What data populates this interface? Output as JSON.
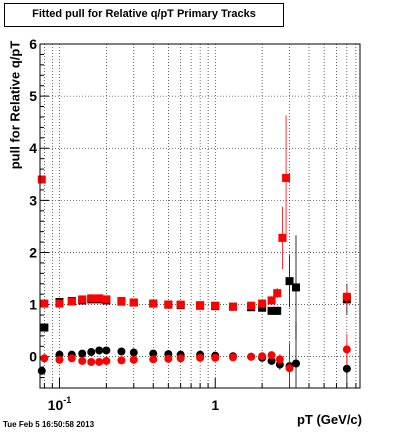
{
  "title": "Fitted pull for Relative q/pT  Primary Tracks",
  "timestamp": "Tue Feb  5 16:50:58 2013",
  "colors": {
    "black_series": "#000000",
    "red_series": "#ff0000",
    "grid": "#000000"
  },
  "chart_data": {
    "type": "scatter",
    "title": "Fitted pull for Relative q/pT  Primary Tracks",
    "xlabel": "pT (GeV/c)",
    "ylabel": "pull for Relative q/pT",
    "xscale": "log",
    "xlim": [
      0.075,
      8.5
    ],
    "ylim": [
      -0.6,
      6
    ],
    "grid": true,
    "x_tick_labels": [
      {
        "value": 0.1,
        "base": "10",
        "exp": "-1"
      },
      {
        "value": 1,
        "base": "1",
        "exp": ""
      }
    ],
    "y_tick_labels": [
      "0",
      "1",
      "2",
      "3",
      "4",
      "5",
      "6"
    ],
    "series": [
      {
        "color": "black",
        "marker": "square",
        "x": [
          0.08,
          0.1,
          0.12,
          0.14,
          0.16,
          0.18,
          0.2,
          0.25,
          0.3,
          0.4,
          0.5,
          0.6,
          0.8,
          1.0,
          1.3,
          1.7,
          2.0,
          2.3,
          2.5,
          3.0,
          3.3,
          7.0
        ],
        "y": [
          0.56,
          1.05,
          1.07,
          1.08,
          1.1,
          1.1,
          1.08,
          1.06,
          1.04,
          1.02,
          1.0,
          0.99,
          0.98,
          0.97,
          0.96,
          0.95,
          0.94,
          0.88,
          0.88,
          1.45,
          1.33,
          1.1
        ],
        "yerr": [
          0.02,
          0.02,
          0.02,
          0.02,
          0.02,
          0.02,
          0.02,
          0.02,
          0.02,
          0.02,
          0.02,
          0.02,
          0.02,
          0.03,
          0.03,
          0.04,
          0.05,
          0.06,
          0.08,
          0.5,
          1.0,
          0.3
        ]
      },
      {
        "color": "red",
        "marker": "square",
        "x": [
          0.077,
          0.08,
          0.1,
          0.12,
          0.14,
          0.16,
          0.18,
          0.2,
          0.25,
          0.3,
          0.4,
          0.5,
          0.6,
          0.8,
          1.0,
          1.3,
          1.7,
          2.0,
          2.3,
          2.5,
          2.7,
          2.85,
          7.0
        ],
        "y": [
          3.4,
          1.02,
          1.02,
          1.06,
          1.1,
          1.12,
          1.12,
          1.1,
          1.07,
          1.04,
          1.02,
          1.0,
          1.0,
          0.99,
          0.98,
          0.96,
          0.98,
          1.02,
          1.08,
          1.22,
          2.28,
          3.43,
          1.15
        ],
        "yerr": [
          0.03,
          0.02,
          0.02,
          0.02,
          0.02,
          0.02,
          0.02,
          0.02,
          0.02,
          0.02,
          0.02,
          0.02,
          0.02,
          0.02,
          0.03,
          0.03,
          0.04,
          0.05,
          0.08,
          0.1,
          0.6,
          1.2,
          0.2
        ]
      },
      {
        "color": "black",
        "marker": "circle",
        "x": [
          0.077,
          0.1,
          0.12,
          0.14,
          0.16,
          0.18,
          0.2,
          0.25,
          0.3,
          0.4,
          0.5,
          0.6,
          0.8,
          1.0,
          1.3,
          1.7,
          2.0,
          2.3,
          2.6,
          3.0,
          3.3,
          7.0
        ],
        "y": [
          -0.27,
          0.04,
          0.04,
          0.06,
          0.09,
          0.12,
          0.12,
          0.1,
          0.08,
          0.06,
          0.05,
          0.04,
          0.04,
          0.02,
          0.01,
          0.0,
          -0.02,
          -0.08,
          -0.15,
          -0.18,
          -0.13,
          -0.23
        ],
        "yerr": [
          0.02,
          0.02,
          0.02,
          0.02,
          0.02,
          0.02,
          0.02,
          0.02,
          0.02,
          0.02,
          0.02,
          0.02,
          0.02,
          0.02,
          0.03,
          0.03,
          0.04,
          0.05,
          0.1,
          0.4,
          0.8,
          0.3
        ]
      },
      {
        "color": "red",
        "marker": "circle",
        "x": [
          0.08,
          0.1,
          0.12,
          0.14,
          0.16,
          0.18,
          0.2,
          0.25,
          0.3,
          0.4,
          0.5,
          0.6,
          0.8,
          1.0,
          1.3,
          1.7,
          2.0,
          2.3,
          2.6,
          3.0,
          7.0
        ],
        "y": [
          -0.03,
          -0.06,
          -0.03,
          -0.08,
          -0.1,
          -0.1,
          -0.08,
          -0.07,
          -0.06,
          -0.05,
          -0.04,
          -0.03,
          -0.02,
          -0.02,
          -0.01,
          0.0,
          0.01,
          0.03,
          -0.05,
          -0.22,
          0.14
        ],
        "yerr": [
          0.02,
          0.02,
          0.02,
          0.02,
          0.02,
          0.02,
          0.02,
          0.02,
          0.02,
          0.02,
          0.02,
          0.02,
          0.02,
          0.02,
          0.03,
          0.03,
          0.04,
          0.05,
          0.1,
          0.5,
          0.3
        ]
      }
    ]
  }
}
